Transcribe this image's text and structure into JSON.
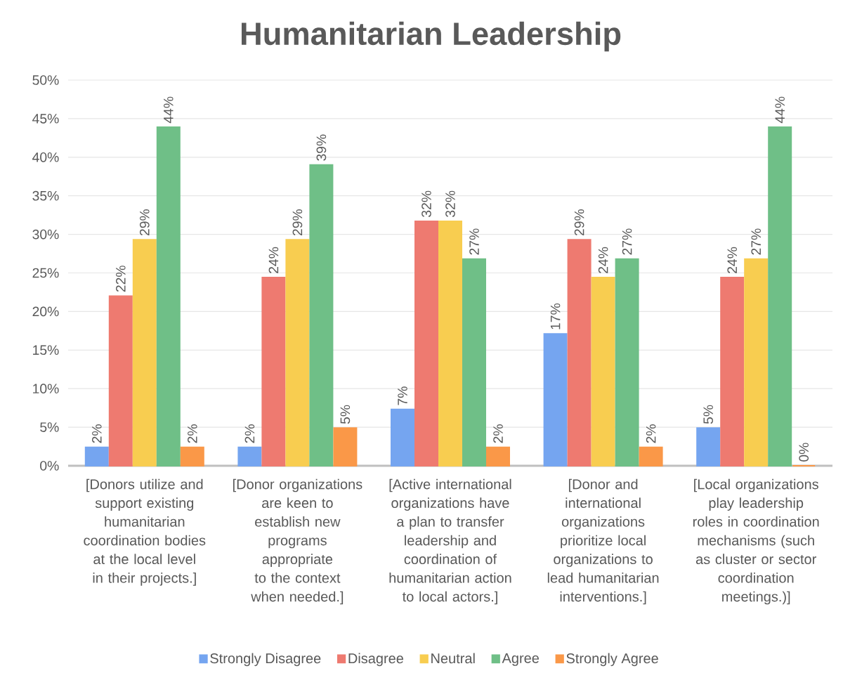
{
  "chart_data": {
    "type": "bar",
    "title": "Humanitarian Leadership",
    "categories": [
      "[Donors utilize and support existing humanitarian coordination bodies at the local level in their projects.]",
      "[Donor organizations are keen to establish new programs appropriate to the context when needed.]",
      "[Active international organizations have a plan to transfer leadership and coordination of humanitarian action to local actors.]",
      "[Donor and international organizations prioritize local organizations to lead humanitarian interventions.]",
      "[Local organizations play leadership roles in coordination mechanisms (such as cluster or sector coordination meetings.)]"
    ],
    "series": [
      {
        "name": "Strongly Disagree",
        "color": "#75a5f0",
        "values": [
          2.4,
          2.4,
          7.3,
          17.1,
          4.9
        ],
        "value_labels": [
          "2%",
          "2%",
          "7%",
          "17%",
          "5%"
        ]
      },
      {
        "name": "Disagree",
        "color": "#ee7a70",
        "values": [
          22,
          24.4,
          31.7,
          29.3,
          24.4
        ],
        "value_labels": [
          "22%",
          "24%",
          "32%",
          "29%",
          "24%"
        ]
      },
      {
        "name": "Neutral",
        "color": "#f8cd50",
        "values": [
          29.3,
          29.3,
          31.7,
          24.4,
          26.8
        ],
        "value_labels": [
          "29%",
          "29%",
          "32%",
          "24%",
          "27%"
        ]
      },
      {
        "name": "Agree",
        "color": "#6fbf87",
        "values": [
          43.9,
          39,
          26.8,
          26.8,
          43.9
        ],
        "value_labels": [
          "44%",
          "39%",
          "27%",
          "27%",
          "44%"
        ]
      },
      {
        "name": "Strongly Agree",
        "color": "#fa9848",
        "values": [
          2.4,
          4.9,
          2.4,
          2.4,
          0
        ],
        "value_labels": [
          "2%",
          "5%",
          "2%",
          "2%",
          "0%"
        ]
      }
    ],
    "ylim": [
      0,
      50
    ],
    "yticks": [
      {
        "value": 0,
        "label": "0%"
      },
      {
        "value": 5,
        "label": "5%"
      },
      {
        "value": 10,
        "label": "10%"
      },
      {
        "value": 15,
        "label": "15%"
      },
      {
        "value": 20,
        "label": "20%"
      },
      {
        "value": 25,
        "label": "25%"
      },
      {
        "value": 30,
        "label": "30%"
      },
      {
        "value": 35,
        "label": "35%"
      },
      {
        "value": 40,
        "label": "40%"
      },
      {
        "value": 45,
        "label": "45%"
      },
      {
        "value": 50,
        "label": "50%"
      }
    ],
    "grid": "y",
    "legend": "bottom"
  }
}
